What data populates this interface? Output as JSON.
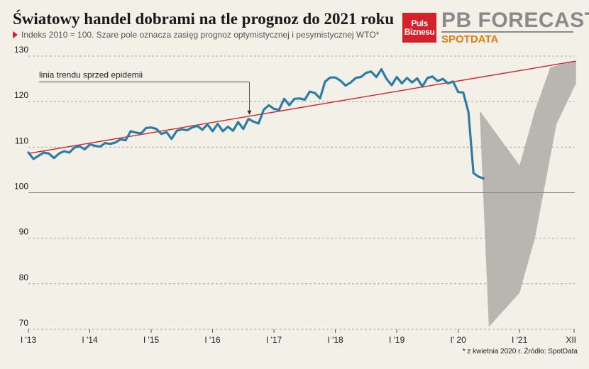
{
  "title": "Światowy handel dobrami na tle prognoz do 2021 roku",
  "subtitle": "Indeks 2010 = 100. Szare pole oznacza zasięg prognoz optymistycznej i pesymistycznej WTO*",
  "logo": {
    "line1": "Puls",
    "line2": "Biznesu"
  },
  "brand": {
    "name": "PB FORECAST",
    "sub": "SPOTDATA",
    "sub_color": "#e07b16",
    "accent": "#d6202a"
  },
  "footnote": "* z kwietnia 2020 r. Źródło: SpotData",
  "chart_data": {
    "type": "line",
    "title": "Światowy handel dobrami na tle prognoz do 2021 roku",
    "ylim": [
      70,
      130
    ],
    "y_ticks": [
      70,
      80,
      90,
      100,
      110,
      120,
      130
    ],
    "x_range": [
      2013.0,
      2021.9
    ],
    "x_ticks": [
      {
        "x": 2013.0,
        "label": "I '13"
      },
      {
        "x": 2014.0,
        "label": "I '14"
      },
      {
        "x": 2015.0,
        "label": "I '15"
      },
      {
        "x": 2016.0,
        "label": "I '16"
      },
      {
        "x": 2017.0,
        "label": "I '17"
      },
      {
        "x": 2018.0,
        "label": "I '18"
      },
      {
        "x": 2019.0,
        "label": "I '19"
      },
      {
        "x": 2020.0,
        "label": "I' 20"
      },
      {
        "x": 2021.0,
        "label": "I '21"
      },
      {
        "x": 2021.92,
        "label": "XII"
      }
    ],
    "grid": "horizontal dashed",
    "series": [
      {
        "color": "#2e7ca3",
        "x": [
          2013.0,
          2013.083,
          2013.167,
          2013.25,
          2013.333,
          2013.417,
          2013.5,
          2013.583,
          2013.667,
          2013.75,
          2013.833,
          2013.917,
          2014.0,
          2014.083,
          2014.167,
          2014.25,
          2014.333,
          2014.417,
          2014.5,
          2014.583,
          2014.667,
          2014.75,
          2014.833,
          2014.917,
          2015.0,
          2015.083,
          2015.167,
          2015.25,
          2015.333,
          2015.417,
          2015.5,
          2015.583,
          2015.667,
          2015.75,
          2015.833,
          2015.917,
          2016.0,
          2016.083,
          2016.167,
          2016.25,
          2016.333,
          2016.417,
          2016.5,
          2016.583,
          2016.667,
          2016.75,
          2016.833,
          2016.917,
          2017.0,
          2017.083,
          2017.167,
          2017.25,
          2017.333,
          2017.417,
          2017.5,
          2017.583,
          2017.667,
          2017.75,
          2017.833,
          2017.917,
          2018.0,
          2018.083,
          2018.167,
          2018.25,
          2018.333,
          2018.417,
          2018.5,
          2018.583,
          2018.667,
          2018.75,
          2018.833,
          2018.917,
          2019.0,
          2019.083,
          2019.167,
          2019.25,
          2019.333,
          2019.417,
          2019.5,
          2019.583,
          2019.667,
          2019.75,
          2019.833,
          2019.917,
          2020.0,
          2020.083,
          2020.167,
          2020.25,
          2020.333,
          2020.417
        ],
        "values": [
          108.8,
          107.4,
          108.1,
          108.8,
          108.6,
          107.6,
          108.6,
          109.1,
          108.8,
          109.9,
          110.2,
          109.5,
          110.6,
          110.3,
          110.1,
          110.9,
          110.7,
          111.0,
          111.7,
          111.5,
          113.5,
          113.2,
          113.0,
          114.2,
          114.3,
          114.0,
          112.9,
          113.3,
          111.8,
          113.6,
          113.9,
          113.7,
          114.3,
          114.7,
          113.8,
          115.0,
          113.5,
          115.1,
          113.5,
          114.5,
          113.6,
          115.5,
          114.0,
          116.2,
          115.6,
          115.2,
          118.2,
          119.2,
          118.4,
          118.2,
          120.6,
          119.2,
          120.6,
          120.7,
          120.4,
          122.2,
          121.9,
          120.7,
          124.4,
          125.3,
          125.3,
          124.6,
          123.5,
          124.2,
          125.2,
          125.4,
          126.3,
          126.6,
          125.4,
          127.1,
          125.0,
          123.6,
          125.4,
          124.0,
          125.2,
          124.2,
          125.1,
          123.3,
          125.2,
          125.5,
          124.5,
          125.0,
          124.0,
          124.4,
          122.1,
          122.0,
          117.7,
          104.3,
          103.5,
          103.1
        ]
      }
    ],
    "trend_line": {
      "label": "linia trendu sprzed epidemii",
      "color": "#d6202a",
      "x": [
        2013.0,
        2021.92
      ],
      "y": [
        108.6,
        128.9
      ]
    },
    "forecast_band": {
      "color": "#b8b6ae",
      "upper": {
        "x": [
          2020.35,
          2021.0,
          2021.25,
          2021.5,
          2021.92
        ],
        "y": [
          118.0,
          106.0,
          118.0,
          127.5,
          129.0
        ]
      },
      "lower": {
        "x": [
          2020.5,
          2021.0,
          2021.25,
          2021.6,
          2021.92
        ],
        "y": [
          70.5,
          78.0,
          90.0,
          115.0,
          124.0
        ]
      }
    },
    "reference_line": {
      "y": 100,
      "color": "#888"
    }
  }
}
